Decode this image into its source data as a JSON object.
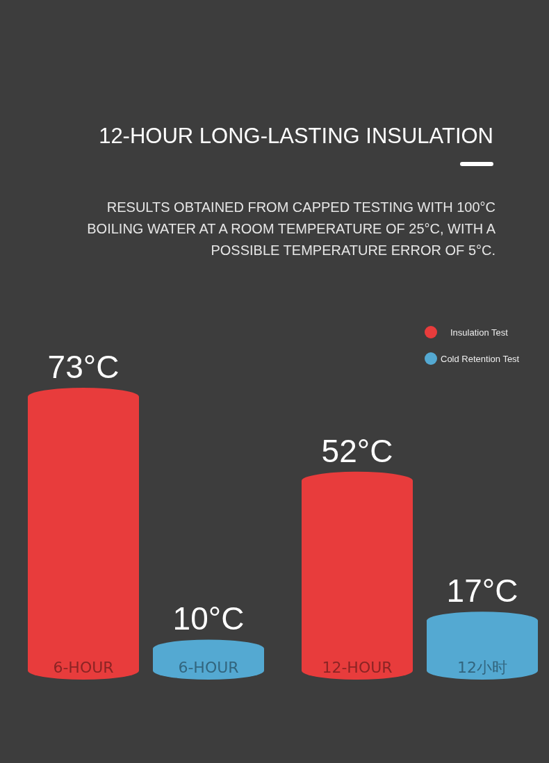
{
  "chart_data": {
    "type": "bar",
    "title": "12-HOUR LONG-LASTING INSULATION",
    "subtitle": "RESULTS OBTAINED FROM CAPPED TESTING WITH 100°C BOILING WATER AT A ROOM TEMPERATURE OF 25°C, WITH A POSSIBLE TEMPERATURE ERROR OF 5°C.",
    "categories": [
      "6-HOUR",
      "6-HOUR",
      "12-HOUR",
      "12小时"
    ],
    "series": [
      {
        "name": "Insulation Test",
        "color": "#e83c3c",
        "values": [
          73,
          null,
          52,
          null
        ],
        "value_labels": [
          "73°C",
          null,
          "52°C",
          null
        ]
      },
      {
        "name": "Cold Retention Test",
        "color": "#54a9d2",
        "values": [
          null,
          10,
          null,
          17
        ],
        "value_labels": [
          null,
          "10°C",
          null,
          "17°C"
        ]
      }
    ],
    "legend": "top right"
  }
}
